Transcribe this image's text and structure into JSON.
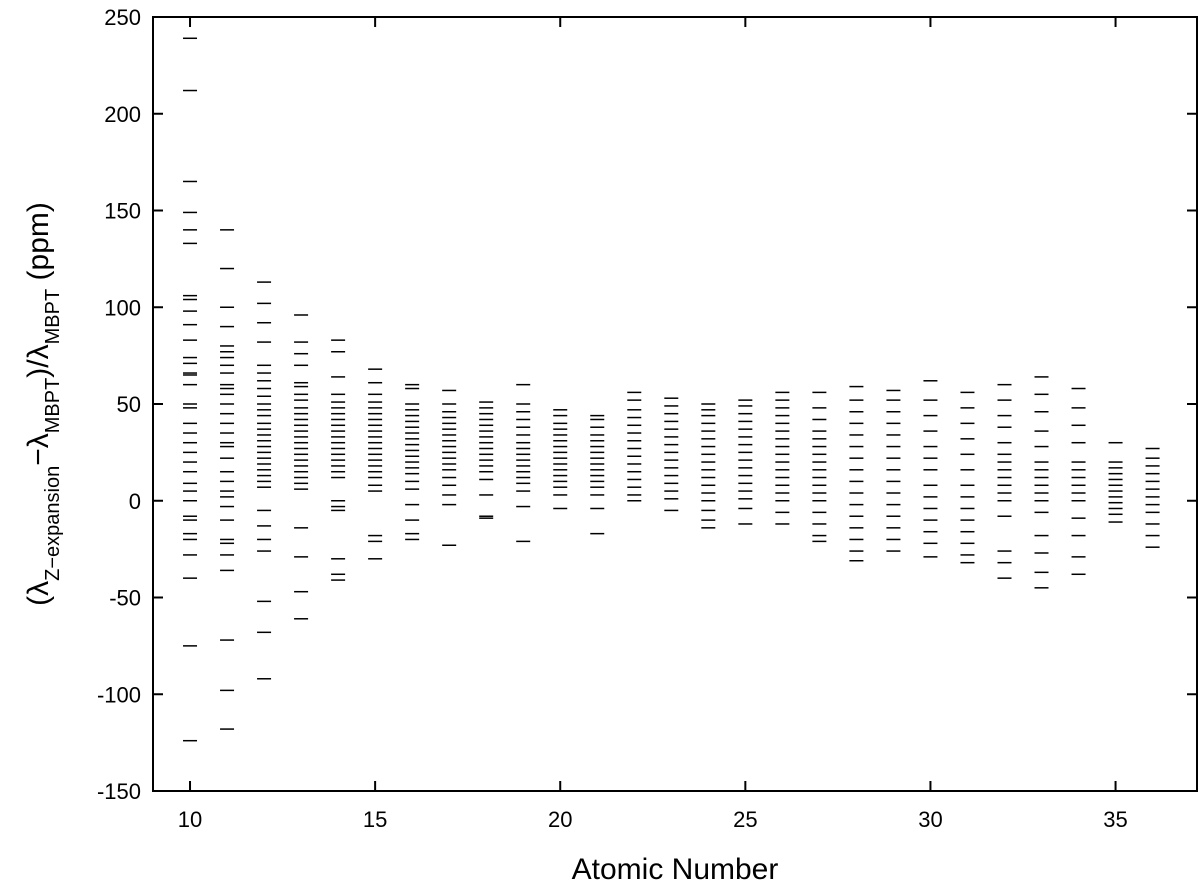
{
  "chart_data": {
    "type": "scatter",
    "x_label": "Atomic Number",
    "y_label_parts": [
      "(λ",
      "Z−expansion",
      "−λ",
      "MBPT",
      ")/λ",
      "MBPT",
      " (ppm)"
    ],
    "xlim": [
      9,
      37.2
    ],
    "xticks": [
      10,
      15,
      20,
      25,
      30,
      35
    ],
    "ylim": [
      -150,
      250
    ],
    "yticks": [
      -150,
      -100,
      -50,
      0,
      50,
      100,
      150,
      200,
      250
    ],
    "color": "#000000",
    "marker": "dash",
    "groups": [
      {
        "x": 10,
        "values": [
          239,
          212,
          165,
          149,
          140,
          133,
          106,
          104,
          98,
          91,
          83,
          74,
          71,
          66,
          65,
          60,
          50,
          48,
          40,
          35,
          30,
          25,
          20,
          15,
          9,
          5,
          0,
          -8,
          -10,
          -17,
          -20,
          -28,
          -40,
          -75,
          -124
        ]
      },
      {
        "x": 11,
        "values": [
          140,
          120,
          100,
          90,
          80,
          77,
          74,
          70,
          66,
          60,
          58,
          55,
          50,
          45,
          40,
          35,
          30,
          28,
          22,
          15,
          10,
          5,
          2,
          -3,
          -10,
          -20,
          -22,
          -28,
          -36,
          -72,
          -98,
          -118
        ]
      },
      {
        "x": 12,
        "values": [
          113,
          102,
          92,
          82,
          70,
          66,
          62,
          58,
          54,
          50,
          47,
          44,
          40,
          37,
          34,
          31,
          28,
          25,
          22,
          19,
          16,
          13,
          10,
          7,
          -5,
          -13,
          -20,
          -26,
          -52,
          -68,
          -92
        ]
      },
      {
        "x": 13,
        "values": [
          96,
          82,
          76,
          70,
          61,
          59,
          55,
          52,
          48,
          45,
          42,
          39,
          36,
          33,
          30,
          27,
          24,
          21,
          18,
          15,
          12,
          9,
          6,
          -14,
          -29,
          -47,
          -61
        ]
      },
      {
        "x": 14,
        "values": [
          83,
          77,
          64,
          55,
          51,
          48,
          45,
          42,
          39,
          36,
          33,
          30,
          27,
          24,
          21,
          18,
          15,
          12,
          0,
          -3,
          -5,
          -30,
          -38,
          -41
        ]
      },
      {
        "x": 15,
        "values": [
          68,
          61,
          55,
          51,
          48,
          45,
          42,
          39,
          36,
          33,
          30,
          27,
          24,
          21,
          18,
          15,
          12,
          8,
          5,
          -18,
          -21,
          -30
        ]
      },
      {
        "x": 16,
        "values": [
          60,
          58,
          50,
          47,
          44,
          41,
          38,
          35,
          32,
          29,
          26,
          23,
          20,
          17,
          14,
          10,
          6,
          -2,
          -10,
          -17,
          -20
        ]
      },
      {
        "x": 17,
        "values": [
          57,
          50,
          46,
          43,
          40,
          37,
          34,
          31,
          28,
          25,
          22,
          19,
          16,
          12,
          8,
          3,
          -2,
          -23
        ]
      },
      {
        "x": 18,
        "values": [
          51,
          48,
          45,
          42,
          39,
          36,
          33,
          30,
          27,
          24,
          21,
          18,
          15,
          11,
          3,
          -8,
          -9
        ]
      },
      {
        "x": 19,
        "values": [
          60,
          50,
          46,
          42,
          38,
          34,
          30,
          27,
          24,
          21,
          18,
          15,
          12,
          9,
          5,
          -3,
          -21
        ]
      },
      {
        "x": 20,
        "values": [
          47,
          44,
          40,
          37,
          34,
          31,
          28,
          25,
          22,
          19,
          16,
          13,
          10,
          7,
          3,
          -4
        ]
      },
      {
        "x": 21,
        "values": [
          44,
          42,
          38,
          34,
          31,
          28,
          25,
          22,
          19,
          16,
          13,
          10,
          7,
          3,
          -4,
          -17
        ]
      },
      {
        "x": 22,
        "values": [
          56,
          52,
          47,
          43,
          39,
          35,
          31,
          27,
          23,
          19,
          15,
          11,
          7,
          3,
          0
        ]
      },
      {
        "x": 23,
        "values": [
          53,
          49,
          45,
          41,
          37,
          33,
          29,
          25,
          21,
          17,
          13,
          9,
          5,
          1,
          -5
        ]
      },
      {
        "x": 24,
        "values": [
          50,
          47,
          44,
          40,
          36,
          32,
          28,
          24,
          20,
          16,
          12,
          8,
          4,
          0,
          -5,
          -10,
          -14
        ]
      },
      {
        "x": 25,
        "values": [
          52,
          49,
          45,
          41,
          37,
          33,
          29,
          25,
          21,
          17,
          13,
          9,
          5,
          1,
          -4,
          -12
        ]
      },
      {
        "x": 26,
        "values": [
          56,
          52,
          48,
          44,
          40,
          36,
          32,
          28,
          24,
          20,
          16,
          12,
          8,
          4,
          0,
          -6,
          -12
        ]
      },
      {
        "x": 27,
        "values": [
          56,
          48,
          42,
          36,
          32,
          28,
          24,
          20,
          16,
          12,
          8,
          4,
          0,
          -6,
          -12,
          -18,
          -21
        ]
      },
      {
        "x": 28,
        "values": [
          59,
          52,
          46,
          40,
          34,
          28,
          22,
          16,
          10,
          4,
          -2,
          -8,
          -14,
          -20,
          -26,
          -31
        ]
      },
      {
        "x": 29,
        "values": [
          57,
          52,
          46,
          40,
          34,
          28,
          22,
          16,
          10,
          4,
          -2,
          -8,
          -14,
          -20,
          -26
        ]
      },
      {
        "x": 30,
        "values": [
          62,
          52,
          44,
          36,
          28,
          22,
          16,
          8,
          2,
          -4,
          -10,
          -16,
          -22,
          -29
        ]
      },
      {
        "x": 31,
        "values": [
          56,
          48,
          40,
          32,
          24,
          16,
          8,
          2,
          -4,
          -10,
          -16,
          -22,
          -28,
          -32
        ]
      },
      {
        "x": 32,
        "values": [
          60,
          52,
          44,
          38,
          30,
          24,
          20,
          16,
          12,
          8,
          4,
          0,
          -8,
          -26,
          -32,
          -40
        ]
      },
      {
        "x": 33,
        "values": [
          64,
          55,
          46,
          36,
          28,
          20,
          16,
          12,
          8,
          4,
          0,
          -6,
          -18,
          -27,
          -37,
          -45
        ]
      },
      {
        "x": 34,
        "values": [
          58,
          48,
          39,
          30,
          20,
          16,
          12,
          8,
          4,
          0,
          -9,
          -18,
          -29,
          -38
        ]
      },
      {
        "x": 35,
        "values": [
          30,
          20,
          17,
          14,
          11,
          8,
          5,
          2,
          -1,
          -4,
          -7,
          -11
        ]
      },
      {
        "x": 36,
        "values": [
          27,
          22,
          18,
          14,
          10,
          6,
          2,
          -2,
          -6,
          -12,
          -18,
          -24
        ]
      }
    ]
  }
}
